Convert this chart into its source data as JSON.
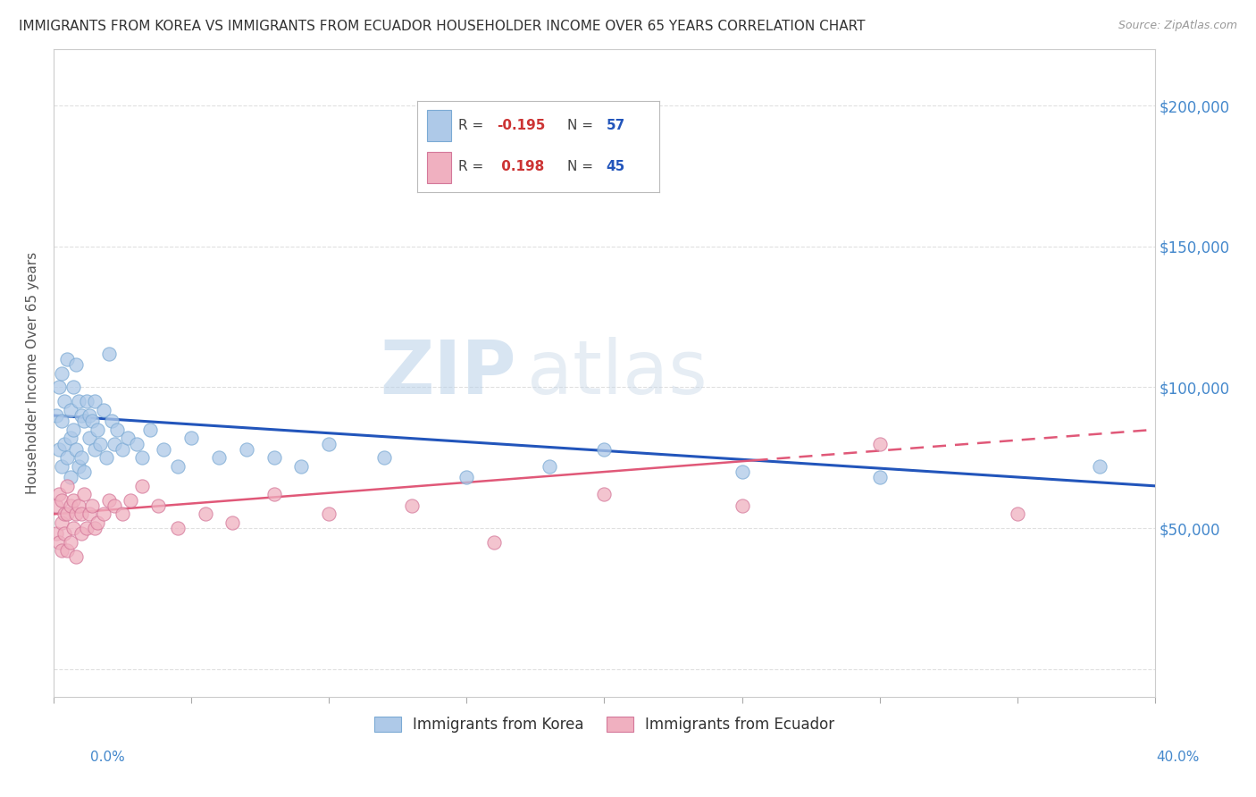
{
  "title": "IMMIGRANTS FROM KOREA VS IMMIGRANTS FROM ECUADOR HOUSEHOLDER INCOME OVER 65 YEARS CORRELATION CHART",
  "source": "Source: ZipAtlas.com",
  "ylabel": "Householder Income Over 65 years",
  "xlim": [
    0.0,
    0.4
  ],
  "ylim": [
    -10000,
    220000
  ],
  "yticks": [
    0,
    50000,
    100000,
    150000,
    200000
  ],
  "legend_korea_r": "-0.195",
  "legend_korea_n": "57",
  "legend_ecuador_r": "0.198",
  "legend_ecuador_n": "45",
  "korea_color": "#aec9e8",
  "ecuador_color": "#f0b0c0",
  "korea_line_color": "#2255bb",
  "ecuador_line_color": "#e05878",
  "background_color": "#ffffff",
  "korea_x": [
    0.001,
    0.002,
    0.002,
    0.003,
    0.003,
    0.003,
    0.004,
    0.004,
    0.005,
    0.005,
    0.006,
    0.006,
    0.006,
    0.007,
    0.007,
    0.008,
    0.008,
    0.009,
    0.009,
    0.01,
    0.01,
    0.011,
    0.011,
    0.012,
    0.013,
    0.013,
    0.014,
    0.015,
    0.015,
    0.016,
    0.017,
    0.018,
    0.019,
    0.02,
    0.021,
    0.022,
    0.023,
    0.025,
    0.027,
    0.03,
    0.032,
    0.035,
    0.04,
    0.045,
    0.05,
    0.06,
    0.07,
    0.08,
    0.09,
    0.1,
    0.12,
    0.15,
    0.18,
    0.2,
    0.25,
    0.3,
    0.38
  ],
  "korea_y": [
    90000,
    100000,
    78000,
    105000,
    88000,
    72000,
    95000,
    80000,
    110000,
    75000,
    92000,
    82000,
    68000,
    100000,
    85000,
    108000,
    78000,
    95000,
    72000,
    90000,
    75000,
    88000,
    70000,
    95000,
    82000,
    90000,
    88000,
    78000,
    95000,
    85000,
    80000,
    92000,
    75000,
    112000,
    88000,
    80000,
    85000,
    78000,
    82000,
    80000,
    75000,
    85000,
    78000,
    72000,
    82000,
    75000,
    78000,
    75000,
    72000,
    80000,
    75000,
    68000,
    72000,
    78000,
    70000,
    68000,
    72000
  ],
  "ecuador_x": [
    0.001,
    0.001,
    0.002,
    0.002,
    0.003,
    0.003,
    0.003,
    0.004,
    0.004,
    0.005,
    0.005,
    0.005,
    0.006,
    0.006,
    0.007,
    0.007,
    0.008,
    0.008,
    0.009,
    0.01,
    0.01,
    0.011,
    0.012,
    0.013,
    0.014,
    0.015,
    0.016,
    0.018,
    0.02,
    0.022,
    0.025,
    0.028,
    0.032,
    0.038,
    0.045,
    0.055,
    0.065,
    0.08,
    0.1,
    0.13,
    0.16,
    0.2,
    0.25,
    0.3,
    0.35
  ],
  "ecuador_y": [
    58000,
    48000,
    62000,
    45000,
    60000,
    52000,
    42000,
    55000,
    48000,
    65000,
    55000,
    42000,
    58000,
    45000,
    60000,
    50000,
    55000,
    40000,
    58000,
    55000,
    48000,
    62000,
    50000,
    55000,
    58000,
    50000,
    52000,
    55000,
    60000,
    58000,
    55000,
    60000,
    65000,
    58000,
    50000,
    55000,
    52000,
    62000,
    55000,
    58000,
    45000,
    62000,
    58000,
    80000,
    55000
  ],
  "korea_line_x0": 0.0,
  "korea_line_y0": 90000,
  "korea_line_x1": 0.4,
  "korea_line_y1": 65000,
  "ecuador_line_x0": 0.0,
  "ecuador_line_y0": 55000,
  "ecuador_line_x1": 0.4,
  "ecuador_line_y1": 85000
}
